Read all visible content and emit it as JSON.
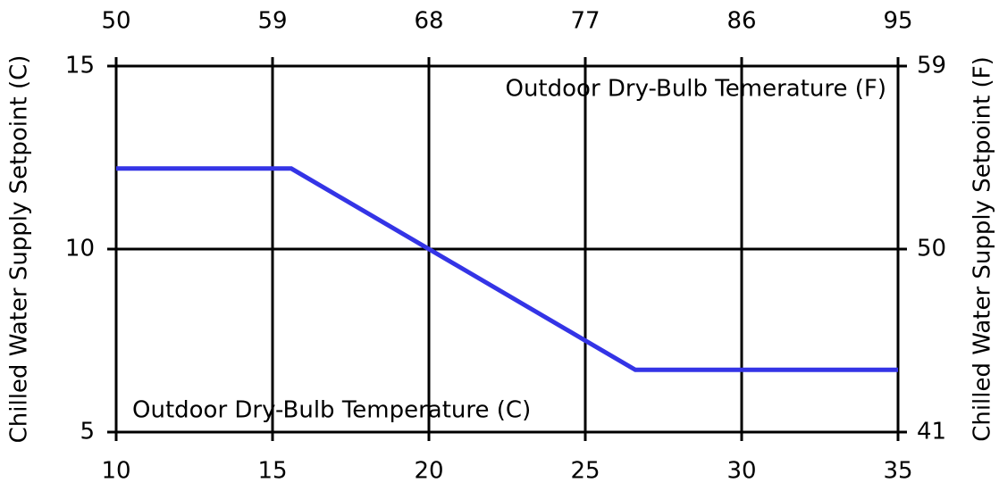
{
  "chart_data": {
    "type": "line",
    "xlabel": "Outdoor Dry-Bulb Temperature (C)",
    "x2label": "Outdoor Dry-Bulb Temerature (F)",
    "ylabel": "Chilled Water Supply Setpoint (C)",
    "y2label": "Chilled Water Supply Setpoint (F)",
    "x": [
      10,
      15.6,
      26.6,
      35
    ],
    "values": [
      12.2,
      12.2,
      6.7,
      6.7
    ],
    "color": "#3434e6",
    "xlim": [
      10,
      35
    ],
    "xticks": [
      10,
      15,
      20,
      25,
      30,
      35
    ],
    "x2lim": [
      50,
      95
    ],
    "x2ticks": [
      50,
      59,
      68,
      77,
      86,
      95
    ],
    "ylim": [
      5,
      15
    ],
    "yticks": [
      5,
      10,
      15
    ],
    "y2lim": [
      41,
      59
    ],
    "y2ticks": [
      41,
      50,
      59
    ],
    "grid": true
  }
}
